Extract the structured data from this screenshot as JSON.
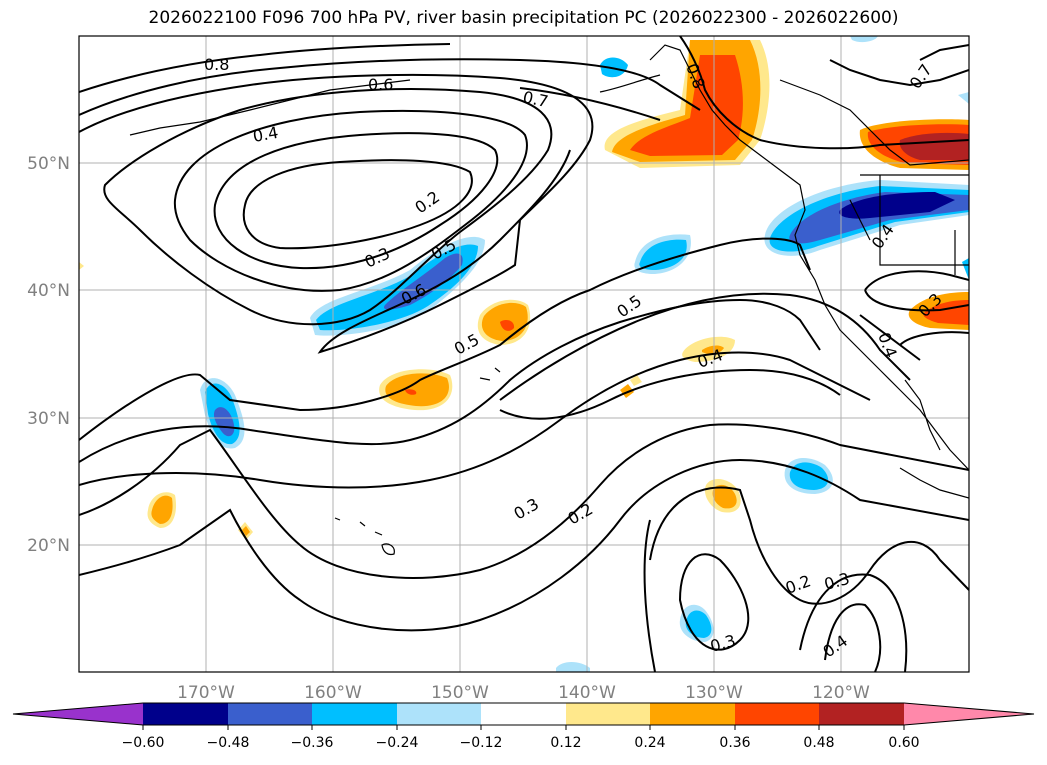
{
  "title": "2026022100 F096 700 hPa PV, river basin precipitation PC (2026022300 - 2026022600)",
  "axes": {
    "lat_labels": [
      "20°N",
      "30°N",
      "40°N",
      "50°N"
    ],
    "lon_labels": [
      "170°W",
      "160°W",
      "150°W",
      "140°W",
      "130°W",
      "120°W"
    ],
    "lat_range": [
      10,
      60
    ],
    "lon_range": [
      -180,
      -110
    ],
    "grid": true
  },
  "colorbar": {
    "ticks": [
      "−0.60",
      "−0.48",
      "−0.36",
      "−0.24",
      "−0.12",
      "0.12",
      "0.24",
      "0.36",
      "0.48",
      "0.60"
    ],
    "colors": [
      "#9932CC",
      "#00008B",
      "#3A5FCD",
      "#00BFFF",
      "#ADE2FA",
      "#FFFFFF",
      "#FFE88C",
      "#FFA500",
      "#FF4500",
      "#B22222",
      "#FF88AA"
    ],
    "extend": "both"
  },
  "contour_labels": [
    {
      "text": "0.8"
    },
    {
      "text": "0.6"
    },
    {
      "text": "0.7"
    },
    {
      "text": "0.4"
    },
    {
      "text": "0.2"
    },
    {
      "text": "0.3"
    },
    {
      "text": "0.5"
    },
    {
      "text": "0.6"
    },
    {
      "text": "0.5"
    },
    {
      "text": "0.5"
    },
    {
      "text": "0.4"
    },
    {
      "text": "0.3"
    },
    {
      "text": "0.2"
    },
    {
      "text": "0.2"
    },
    {
      "text": "0.3"
    },
    {
      "text": "0.3"
    },
    {
      "text": "0.4"
    },
    {
      "text": "0.8"
    },
    {
      "text": "0.7"
    },
    {
      "text": "0.4"
    },
    {
      "text": "0.3"
    },
    {
      "text": "0.4"
    }
  ]
}
